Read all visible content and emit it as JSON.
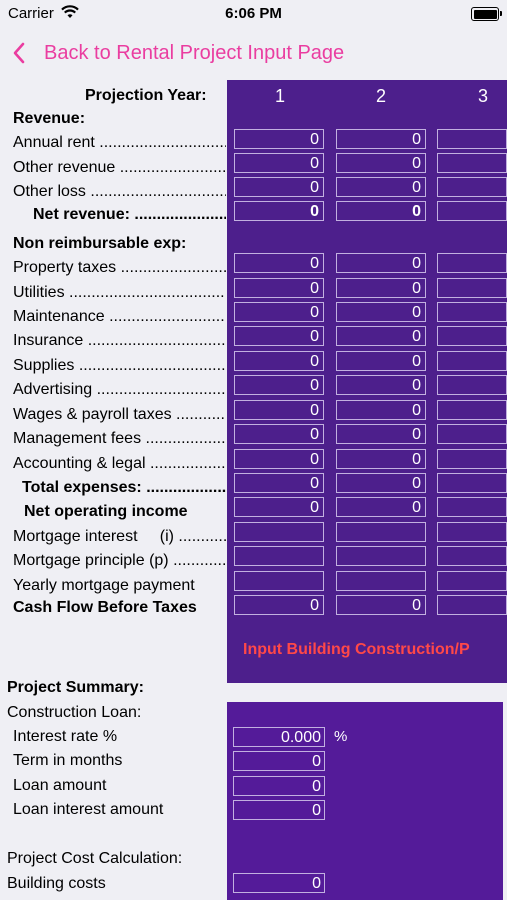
{
  "status": {
    "carrier": "Carrier",
    "time": "6:06 PM"
  },
  "nav": {
    "back_label": "Back to Rental Project Input Page"
  },
  "projection": {
    "label": "Projection Year:",
    "years": [
      "1",
      "2",
      "3"
    ]
  },
  "sections": {
    "revenue": "Revenue:",
    "non_reimb": "Non reimbursable exp:"
  },
  "rows": {
    "annual_rent": {
      "label": "Annual rent",
      "values": [
        "0",
        "0",
        ""
      ]
    },
    "other_revenue": {
      "label": "Other revenue",
      "values": [
        "0",
        "0",
        ""
      ]
    },
    "other_loss": {
      "label": "Other loss",
      "values": [
        "0",
        "0",
        ""
      ]
    },
    "net_revenue": {
      "label": "Net revenue:",
      "values": [
        "0",
        "0",
        ""
      ]
    },
    "property_taxes": {
      "label": "Property taxes",
      "values": [
        "0",
        "0",
        ""
      ]
    },
    "utilities": {
      "label": "Utilities",
      "values": [
        "0",
        "0",
        ""
      ]
    },
    "maintenance": {
      "label": "Maintenance",
      "values": [
        "0",
        "0",
        ""
      ]
    },
    "insurance": {
      "label": "Insurance",
      "values": [
        "0",
        "0",
        ""
      ]
    },
    "supplies": {
      "label": "Supplies",
      "values": [
        "0",
        "0",
        ""
      ]
    },
    "advertising": {
      "label": "Advertising",
      "values": [
        "0",
        "0",
        ""
      ]
    },
    "wages": {
      "label": "Wages & payroll taxes",
      "values": [
        "0",
        "0",
        ""
      ]
    },
    "mgmt_fees": {
      "label": "Management fees",
      "values": [
        "0",
        "0",
        ""
      ]
    },
    "accounting": {
      "label": "Accounting & legal",
      "values": [
        "0",
        "0",
        ""
      ]
    },
    "total_exp": {
      "label": "Total expenses:",
      "values": [
        "0",
        "0",
        ""
      ]
    },
    "noi": {
      "label": "Net operating income",
      "values": [
        "0",
        "0",
        ""
      ]
    },
    "mort_interest": {
      "label": "Mortgage interest     (i)",
      "values": [
        "",
        "",
        ""
      ]
    },
    "mort_principle": {
      "label": "Mortgage principle (p)",
      "values": [
        "",
        "",
        ""
      ]
    },
    "yearly_mort": {
      "label": "Yearly mortgage payment",
      "values": [
        "",
        "",
        ""
      ]
    },
    "cash_flow": {
      "label": "Cash Flow Before Taxes",
      "values": [
        "0",
        "0",
        ""
      ]
    }
  },
  "warning": "Input Building Construction/P",
  "summary": {
    "title": "Project Summary:",
    "construction_loan": "Construction Loan:",
    "interest_rate": {
      "label": "Interest rate %",
      "value": "0.000",
      "unit": "%"
    },
    "term": {
      "label": "Term in months",
      "value": "0"
    },
    "loan_amount": {
      "label": "Loan amount",
      "value": "0"
    },
    "loan_interest": {
      "label": "Loan interest amount",
      "value": "0"
    },
    "cost_calc": "Project Cost Calculation:",
    "building_costs": {
      "label": "Building costs",
      "value": "0"
    }
  }
}
